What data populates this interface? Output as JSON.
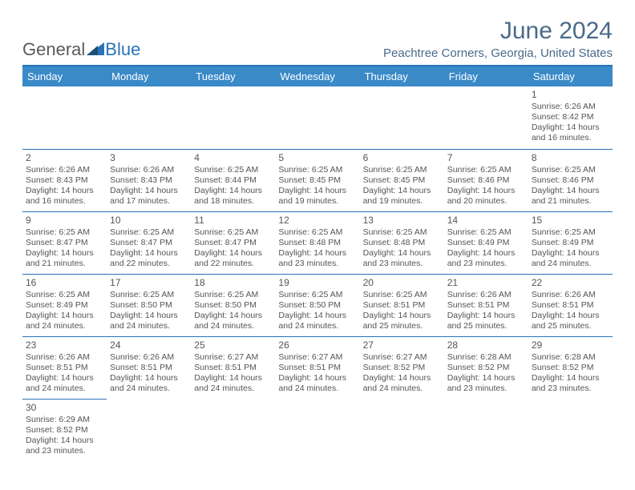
{
  "brand": {
    "part1": "General",
    "part2": "Blue"
  },
  "title": "June 2024",
  "location": "Peachtree Corners, Georgia, United States",
  "colors": {
    "header_bg": "#3a8ac8",
    "rule": "#2a73b8",
    "title_color": "#4a6a8a",
    "text": "#555555"
  },
  "day_headers": [
    "Sunday",
    "Monday",
    "Tuesday",
    "Wednesday",
    "Thursday",
    "Friday",
    "Saturday"
  ],
  "weeks": [
    [
      null,
      null,
      null,
      null,
      null,
      null,
      {
        "n": "1",
        "sunrise": "Sunrise: 6:26 AM",
        "sunset": "Sunset: 8:42 PM",
        "dl1": "Daylight: 14 hours",
        "dl2": "and 16 minutes."
      }
    ],
    [
      {
        "n": "2",
        "sunrise": "Sunrise: 6:26 AM",
        "sunset": "Sunset: 8:43 PM",
        "dl1": "Daylight: 14 hours",
        "dl2": "and 16 minutes."
      },
      {
        "n": "3",
        "sunrise": "Sunrise: 6:26 AM",
        "sunset": "Sunset: 8:43 PM",
        "dl1": "Daylight: 14 hours",
        "dl2": "and 17 minutes."
      },
      {
        "n": "4",
        "sunrise": "Sunrise: 6:25 AM",
        "sunset": "Sunset: 8:44 PM",
        "dl1": "Daylight: 14 hours",
        "dl2": "and 18 minutes."
      },
      {
        "n": "5",
        "sunrise": "Sunrise: 6:25 AM",
        "sunset": "Sunset: 8:45 PM",
        "dl1": "Daylight: 14 hours",
        "dl2": "and 19 minutes."
      },
      {
        "n": "6",
        "sunrise": "Sunrise: 6:25 AM",
        "sunset": "Sunset: 8:45 PM",
        "dl1": "Daylight: 14 hours",
        "dl2": "and 19 minutes."
      },
      {
        "n": "7",
        "sunrise": "Sunrise: 6:25 AM",
        "sunset": "Sunset: 8:46 PM",
        "dl1": "Daylight: 14 hours",
        "dl2": "and 20 minutes."
      },
      {
        "n": "8",
        "sunrise": "Sunrise: 6:25 AM",
        "sunset": "Sunset: 8:46 PM",
        "dl1": "Daylight: 14 hours",
        "dl2": "and 21 minutes."
      }
    ],
    [
      {
        "n": "9",
        "sunrise": "Sunrise: 6:25 AM",
        "sunset": "Sunset: 8:47 PM",
        "dl1": "Daylight: 14 hours",
        "dl2": "and 21 minutes."
      },
      {
        "n": "10",
        "sunrise": "Sunrise: 6:25 AM",
        "sunset": "Sunset: 8:47 PM",
        "dl1": "Daylight: 14 hours",
        "dl2": "and 22 minutes."
      },
      {
        "n": "11",
        "sunrise": "Sunrise: 6:25 AM",
        "sunset": "Sunset: 8:47 PM",
        "dl1": "Daylight: 14 hours",
        "dl2": "and 22 minutes."
      },
      {
        "n": "12",
        "sunrise": "Sunrise: 6:25 AM",
        "sunset": "Sunset: 8:48 PM",
        "dl1": "Daylight: 14 hours",
        "dl2": "and 23 minutes."
      },
      {
        "n": "13",
        "sunrise": "Sunrise: 6:25 AM",
        "sunset": "Sunset: 8:48 PM",
        "dl1": "Daylight: 14 hours",
        "dl2": "and 23 minutes."
      },
      {
        "n": "14",
        "sunrise": "Sunrise: 6:25 AM",
        "sunset": "Sunset: 8:49 PM",
        "dl1": "Daylight: 14 hours",
        "dl2": "and 23 minutes."
      },
      {
        "n": "15",
        "sunrise": "Sunrise: 6:25 AM",
        "sunset": "Sunset: 8:49 PM",
        "dl1": "Daylight: 14 hours",
        "dl2": "and 24 minutes."
      }
    ],
    [
      {
        "n": "16",
        "sunrise": "Sunrise: 6:25 AM",
        "sunset": "Sunset: 8:49 PM",
        "dl1": "Daylight: 14 hours",
        "dl2": "and 24 minutes."
      },
      {
        "n": "17",
        "sunrise": "Sunrise: 6:25 AM",
        "sunset": "Sunset: 8:50 PM",
        "dl1": "Daylight: 14 hours",
        "dl2": "and 24 minutes."
      },
      {
        "n": "18",
        "sunrise": "Sunrise: 6:25 AM",
        "sunset": "Sunset: 8:50 PM",
        "dl1": "Daylight: 14 hours",
        "dl2": "and 24 minutes."
      },
      {
        "n": "19",
        "sunrise": "Sunrise: 6:25 AM",
        "sunset": "Sunset: 8:50 PM",
        "dl1": "Daylight: 14 hours",
        "dl2": "and 24 minutes."
      },
      {
        "n": "20",
        "sunrise": "Sunrise: 6:25 AM",
        "sunset": "Sunset: 8:51 PM",
        "dl1": "Daylight: 14 hours",
        "dl2": "and 25 minutes."
      },
      {
        "n": "21",
        "sunrise": "Sunrise: 6:26 AM",
        "sunset": "Sunset: 8:51 PM",
        "dl1": "Daylight: 14 hours",
        "dl2": "and 25 minutes."
      },
      {
        "n": "22",
        "sunrise": "Sunrise: 6:26 AM",
        "sunset": "Sunset: 8:51 PM",
        "dl1": "Daylight: 14 hours",
        "dl2": "and 25 minutes."
      }
    ],
    [
      {
        "n": "23",
        "sunrise": "Sunrise: 6:26 AM",
        "sunset": "Sunset: 8:51 PM",
        "dl1": "Daylight: 14 hours",
        "dl2": "and 24 minutes."
      },
      {
        "n": "24",
        "sunrise": "Sunrise: 6:26 AM",
        "sunset": "Sunset: 8:51 PM",
        "dl1": "Daylight: 14 hours",
        "dl2": "and 24 minutes."
      },
      {
        "n": "25",
        "sunrise": "Sunrise: 6:27 AM",
        "sunset": "Sunset: 8:51 PM",
        "dl1": "Daylight: 14 hours",
        "dl2": "and 24 minutes."
      },
      {
        "n": "26",
        "sunrise": "Sunrise: 6:27 AM",
        "sunset": "Sunset: 8:51 PM",
        "dl1": "Daylight: 14 hours",
        "dl2": "and 24 minutes."
      },
      {
        "n": "27",
        "sunrise": "Sunrise: 6:27 AM",
        "sunset": "Sunset: 8:52 PM",
        "dl1": "Daylight: 14 hours",
        "dl2": "and 24 minutes."
      },
      {
        "n": "28",
        "sunrise": "Sunrise: 6:28 AM",
        "sunset": "Sunset: 8:52 PM",
        "dl1": "Daylight: 14 hours",
        "dl2": "and 23 minutes."
      },
      {
        "n": "29",
        "sunrise": "Sunrise: 6:28 AM",
        "sunset": "Sunset: 8:52 PM",
        "dl1": "Daylight: 14 hours",
        "dl2": "and 23 minutes."
      }
    ],
    [
      {
        "n": "30",
        "sunrise": "Sunrise: 6:29 AM",
        "sunset": "Sunset: 8:52 PM",
        "dl1": "Daylight: 14 hours",
        "dl2": "and 23 minutes."
      },
      null,
      null,
      null,
      null,
      null,
      null
    ]
  ]
}
